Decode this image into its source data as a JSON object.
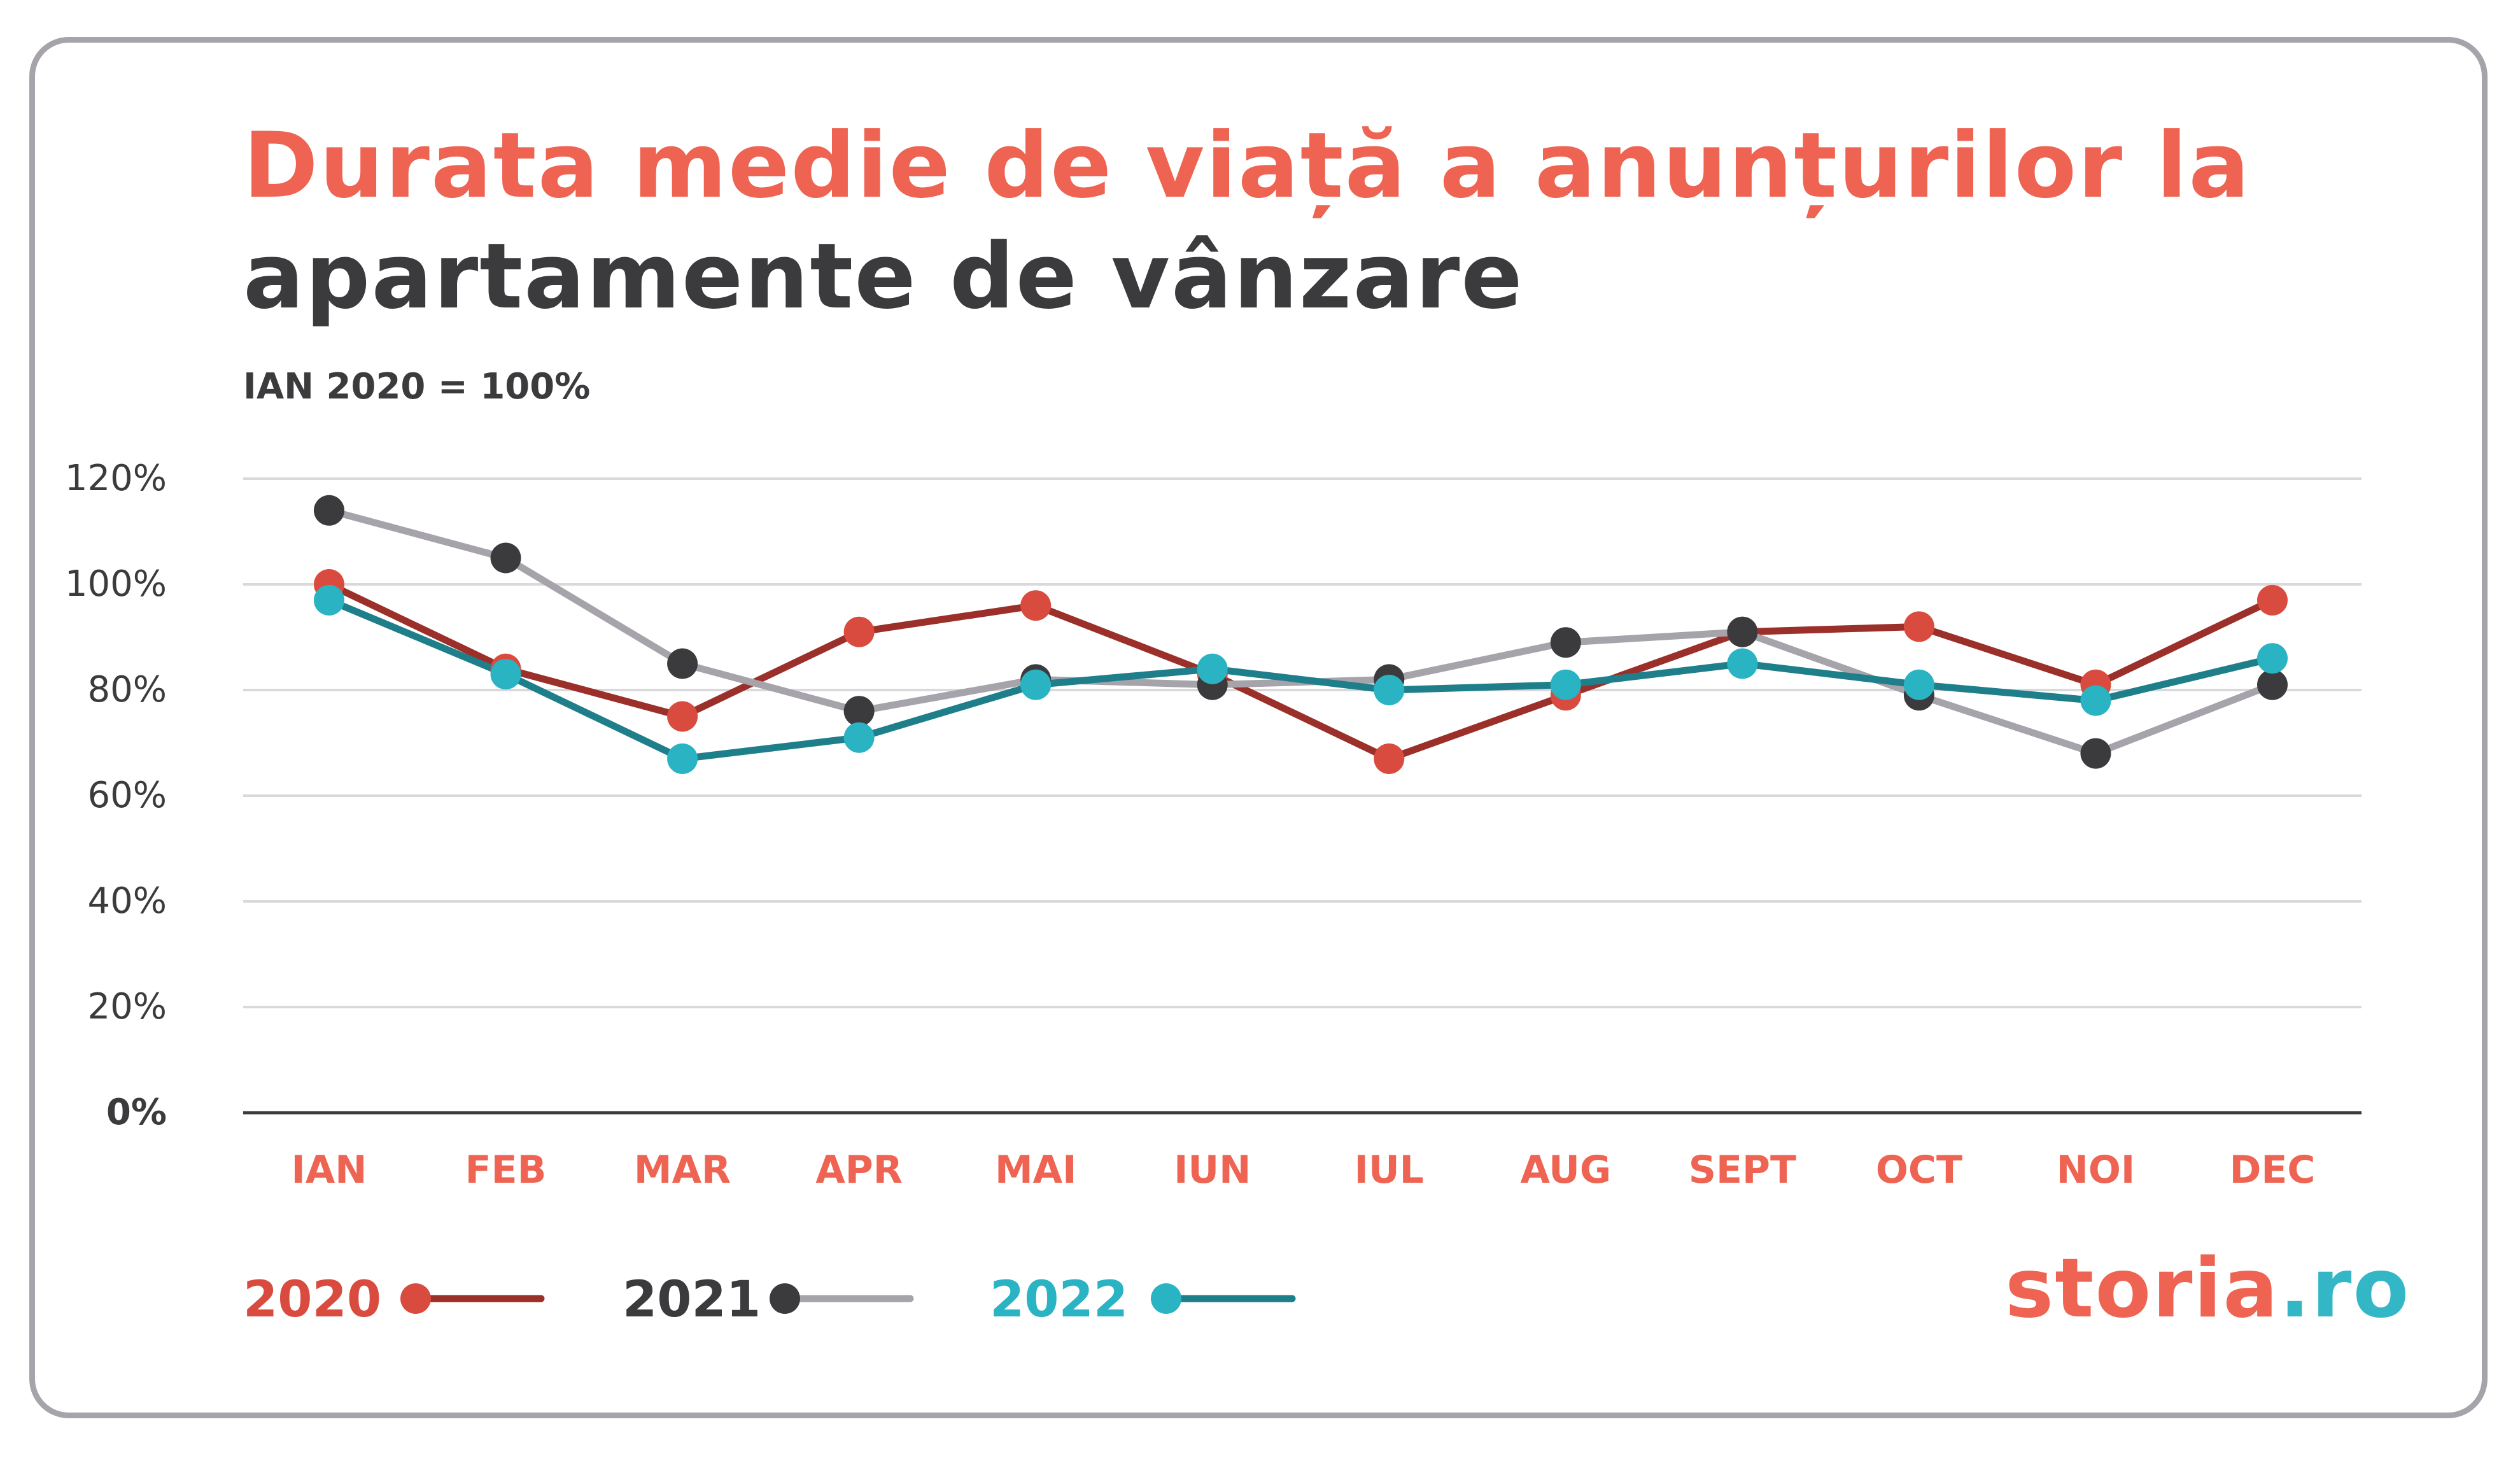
{
  "title": {
    "line1": "Durata medie de viață a anunțurilor la",
    "line2": "apartamente de vânzare"
  },
  "subtitle": "IAN 2020 = 100%",
  "logo": {
    "part1": "storia",
    "part2": ".ro"
  },
  "colors": {
    "title_accent": "#ee6352",
    "dark": "#3b3b3d",
    "grid": "#d9d9db",
    "month_label": "#ee6352"
  },
  "chart_data": {
    "type": "line",
    "title": "Durata medie de viață a anunțurilor la apartamente de vânzare",
    "subtitle": "IAN 2020 = 100%",
    "categories": [
      "IAN",
      "FEB",
      "MAR",
      "APR",
      "MAI",
      "IUN",
      "IUL",
      "AUG",
      "SEPT",
      "OCT",
      "NOI",
      "DEC"
    ],
    "ylim": [
      0,
      120
    ],
    "yticks": [
      0,
      20,
      40,
      60,
      80,
      100,
      120
    ],
    "ytick_labels": [
      "0%",
      "20%",
      "40%",
      "60%",
      "80%",
      "100%",
      "120%"
    ],
    "grid": true,
    "legend": "bottom-left",
    "series": [
      {
        "name": "2020",
        "line_color": "#9b2f29",
        "marker_color": "#d94b3e",
        "label_color": "#d94b3e",
        "values": [
          100,
          84,
          75,
          91,
          96,
          83,
          67,
          79,
          91,
          92,
          81,
          97
        ]
      },
      {
        "name": "2021",
        "line_color": "#a6a4aa",
        "marker_color": "#3b3b3d",
        "label_color": "#3b3b3d",
        "values": [
          114,
          105,
          85,
          76,
          82,
          81,
          82,
          89,
          91,
          79,
          68,
          81
        ]
      },
      {
        "name": "2022",
        "line_color": "#1e7f8b",
        "marker_color": "#2ab3c2",
        "label_color": "#2ab3c2",
        "values": [
          97,
          83,
          67,
          71,
          81,
          84,
          80,
          81,
          85,
          81,
          78,
          86
        ]
      }
    ]
  }
}
